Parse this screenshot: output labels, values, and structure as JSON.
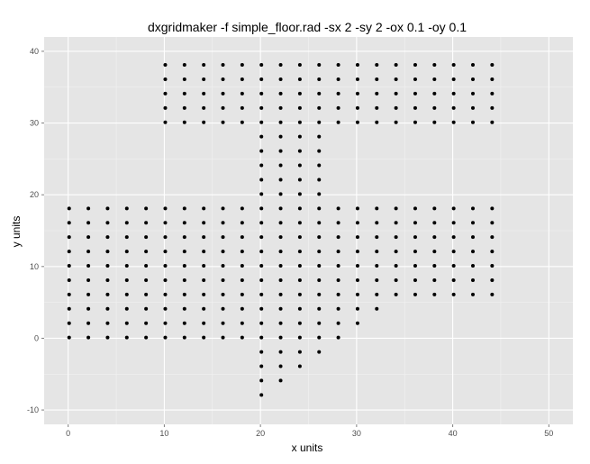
{
  "chart_data": {
    "type": "scatter",
    "title": "dxgridmaker -f simple_floor.rad -sx 2 -sy 2 -ox 0.1 -oy 0.1",
    "xlabel": "x units",
    "ylabel": "y units",
    "xlim": [
      -2.5,
      52.5
    ],
    "ylim": [
      -12,
      42
    ],
    "x_ticks": [
      0,
      10,
      20,
      30,
      40,
      50
    ],
    "y_ticks": [
      -10,
      0,
      10,
      20,
      30,
      40
    ],
    "x_tick_labels": [
      "0",
      "10",
      "20",
      "30",
      "40",
      "50"
    ],
    "y_tick_labels": [
      "-10",
      "0",
      "10",
      "20",
      "30",
      "40"
    ],
    "grid": true,
    "background": "#e5e5e5",
    "point_color": "#000000",
    "regions": [
      {
        "x_from": 0,
        "x_to": 18,
        "y_from": 0,
        "y_to": 18
      },
      {
        "x_from": 20,
        "x_to": 26,
        "y_from": 0,
        "y_to": 18
      },
      {
        "x_from": 28,
        "x_to": 28,
        "y_from": 0,
        "y_to": 18
      },
      {
        "x_from": 30,
        "x_to": 30,
        "y_from": 2,
        "y_to": 18
      },
      {
        "x_from": 32,
        "x_to": 32,
        "y_from": 4,
        "y_to": 18
      },
      {
        "x_from": 34,
        "x_to": 44,
        "y_from": 6,
        "y_to": 18
      },
      {
        "x_from": 20,
        "x_to": 26,
        "y_from": 20,
        "y_to": 28
      },
      {
        "x_from": 10,
        "x_to": 44,
        "y_from": 30,
        "y_to": 38
      },
      {
        "x_from": 20,
        "x_to": 26,
        "y_from": -2,
        "y_to": -2
      },
      {
        "x_from": 20,
        "x_to": 24,
        "y_from": -4,
        "y_to": -4
      },
      {
        "x_from": 20,
        "x_to": 22,
        "y_from": -6,
        "y_to": -6
      },
      {
        "x_from": 20,
        "x_to": 20,
        "y_from": -8,
        "y_to": -8
      }
    ],
    "step": 2
  }
}
